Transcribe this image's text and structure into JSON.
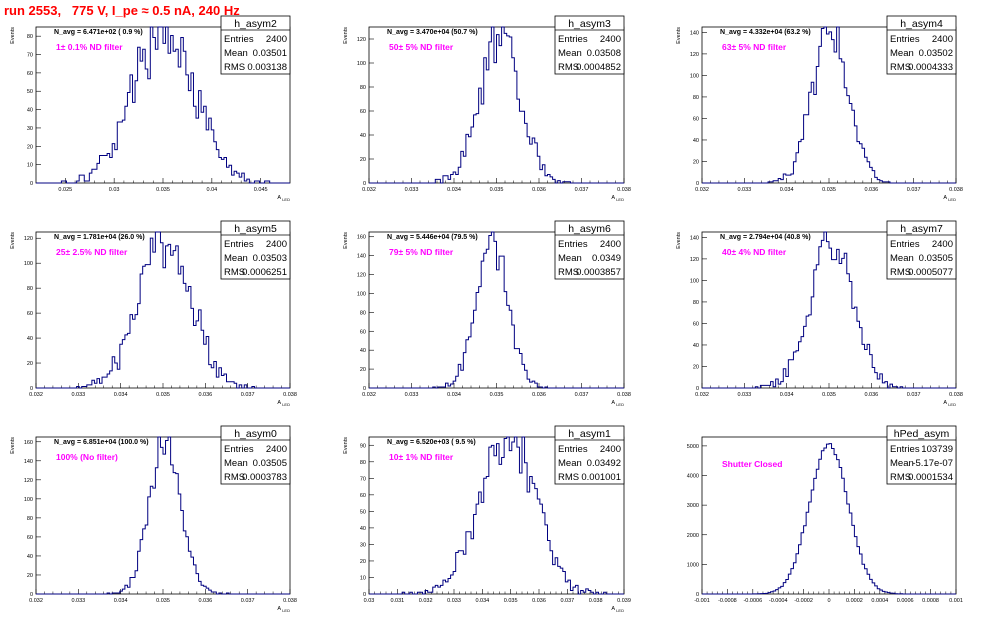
{
  "page": {
    "title": "run 2553,   775 V, I_pe ≈ 0.5 nA, 240 Hz",
    "title_color": "#ff0000",
    "annotation_color": "#ff00ff",
    "line_color": "#000080"
  },
  "chart_data": [
    {
      "type": "histogram",
      "name": "h_asym2",
      "nav_label": "N_avg = 6.471e+02 ( 0.9 %)",
      "filter_label": "1± 0.1% ND filter",
      "stats": {
        "Entries": "2400",
        "Mean": "0.03501",
        "RMS": "0.003138"
      },
      "ylabel": "Events",
      "xlabel": "A_LED",
      "xlim": [
        0.022,
        0.048
      ],
      "ylim": [
        0,
        85
      ],
      "xticks": [
        "0.025",
        "0.03",
        "0.035",
        "0.04",
        "0.045"
      ],
      "xtick_values": [
        0.025,
        0.03,
        0.035,
        0.04,
        0.045
      ],
      "yticks": [
        "0",
        "10",
        "20",
        "30",
        "40",
        "50",
        "60",
        "70",
        "80"
      ],
      "ytick_values": [
        0,
        10,
        20,
        30,
        40,
        50,
        60,
        70,
        80
      ],
      "mean": 0.03501,
      "rms": 0.003138,
      "entries": 2400,
      "peak": 85,
      "bins": 100
    },
    {
      "type": "histogram",
      "name": "h_asym3",
      "nav_label": "N_avg = 3.470e+04 (50.7 %)",
      "filter_label": "50± 5% ND filter",
      "stats": {
        "Entries": "2400",
        "Mean": "0.03508",
        "RMS": "0.0004852"
      },
      "ylabel": "Events",
      "xlabel": "A_LED",
      "xlim": [
        0.032,
        0.038
      ],
      "ylim": [
        0,
        130
      ],
      "xticks": [
        "0.032",
        "0.033",
        "0.034",
        "0.035",
        "0.036",
        "0.037",
        "0.038"
      ],
      "xtick_values": [
        0.032,
        0.033,
        0.034,
        0.035,
        0.036,
        0.037,
        0.038
      ],
      "yticks": [
        "0",
        "20",
        "40",
        "60",
        "80",
        "100",
        "120"
      ],
      "ytick_values": [
        0,
        20,
        40,
        60,
        80,
        100,
        120
      ],
      "mean": 0.03508,
      "rms": 0.0004852,
      "entries": 2400,
      "peak": 120,
      "bins": 100
    },
    {
      "type": "histogram",
      "name": "h_asym4",
      "nav_label": "N_avg = 4.332e+04 (63.2 %)",
      "filter_label": "63± 5% ND filter",
      "stats": {
        "Entries": "2400",
        "Mean": "0.03502",
        "RMS": "0.0004333"
      },
      "ylabel": "Events",
      "xlabel": "A_LED",
      "xlim": [
        0.032,
        0.038
      ],
      "ylim": [
        0,
        145
      ],
      "xticks": [
        "0.032",
        "0.033",
        "0.034",
        "0.035",
        "0.036",
        "0.037",
        "0.038"
      ],
      "xtick_values": [
        0.032,
        0.033,
        0.034,
        0.035,
        0.036,
        0.037,
        0.038
      ],
      "yticks": [
        "0",
        "20",
        "40",
        "60",
        "80",
        "100",
        "120",
        "140"
      ],
      "ytick_values": [
        0,
        20,
        40,
        60,
        80,
        100,
        120,
        140
      ],
      "mean": 0.03502,
      "rms": 0.0004333,
      "entries": 2400,
      "peak": 138,
      "bins": 100
    },
    {
      "type": "histogram",
      "name": "h_asym5",
      "nav_label": "N_avg = 1.781e+04 (26.0 %)",
      "filter_label": "25± 2.5% ND filter",
      "stats": {
        "Entries": "2400",
        "Mean": "0.03503",
        "RMS": "0.0006251"
      },
      "ylabel": "Events",
      "xlabel": "A_LED",
      "xlim": [
        0.032,
        0.038
      ],
      "ylim": [
        0,
        125
      ],
      "xticks": [
        "0.032",
        "0.033",
        "0.034",
        "0.035",
        "0.036",
        "0.037",
        "0.038"
      ],
      "xtick_values": [
        0.032,
        0.033,
        0.034,
        0.035,
        0.036,
        0.037,
        0.038
      ],
      "yticks": [
        "0",
        "20",
        "40",
        "60",
        "80",
        "100",
        "120"
      ],
      "ytick_values": [
        0,
        20,
        40,
        60,
        80,
        100,
        120
      ],
      "mean": 0.03503,
      "rms": 0.0006251,
      "entries": 2400,
      "peak": 115,
      "bins": 100
    },
    {
      "type": "histogram",
      "name": "h_asym6",
      "nav_label": "N_avg = 5.446e+04 (79.5 %)",
      "filter_label": "79± 5% ND filter",
      "stats": {
        "Entries": "2400",
        "Mean": "0.0349",
        "RMS": "0.0003857"
      },
      "ylabel": "Events",
      "xlabel": "A_LED",
      "xlim": [
        0.032,
        0.038
      ],
      "ylim": [
        0,
        165
      ],
      "xticks": [
        "0.032",
        "0.033",
        "0.034",
        "0.035",
        "0.036",
        "0.037",
        "0.038"
      ],
      "xtick_values": [
        0.032,
        0.033,
        0.034,
        0.035,
        0.036,
        0.037,
        0.038
      ],
      "yticks": [
        "0",
        "20",
        "40",
        "60",
        "80",
        "100",
        "120",
        "140",
        "160"
      ],
      "ytick_values": [
        0,
        20,
        40,
        60,
        80,
        100,
        120,
        140,
        160
      ],
      "mean": 0.0349,
      "rms": 0.0003857,
      "entries": 2400,
      "peak": 155,
      "bins": 100
    },
    {
      "type": "histogram",
      "name": "h_asym7",
      "nav_label": "N_avg = 2.794e+04 (40.8 %)",
      "filter_label": "40± 4% ND filter",
      "stats": {
        "Entries": "2400",
        "Mean": "0.03505",
        "RMS": "0.0005077"
      },
      "ylabel": "Events",
      "xlabel": "A_LED",
      "xlim": [
        0.032,
        0.038
      ],
      "ylim": [
        0,
        145
      ],
      "xticks": [
        "0.032",
        "0.033",
        "0.034",
        "0.035",
        "0.036",
        "0.037",
        "0.038"
      ],
      "xtick_values": [
        0.032,
        0.033,
        0.034,
        0.035,
        0.036,
        0.037,
        0.038
      ],
      "yticks": [
        "0",
        "20",
        "40",
        "60",
        "80",
        "100",
        "120",
        "140"
      ],
      "ytick_values": [
        0,
        20,
        40,
        60,
        80,
        100,
        120,
        140
      ],
      "mean": 0.03505,
      "rms": 0.0005077,
      "entries": 2400,
      "peak": 135,
      "bins": 100
    },
    {
      "type": "histogram",
      "name": "h_asym0",
      "nav_label": "N_avg = 6.851e+04 (100.0 %)",
      "filter_label": "100% (No filter)",
      "stats": {
        "Entries": "2400",
        "Mean": "0.03505",
        "RMS": "0.0003783"
      },
      "ylabel": "Events",
      "xlabel": "A_LED",
      "xlim": [
        0.032,
        0.038
      ],
      "ylim": [
        0,
        165
      ],
      "xticks": [
        "0.032",
        "0.033",
        "0.034",
        "0.035",
        "0.036",
        "0.037",
        "0.038"
      ],
      "xtick_values": [
        0.032,
        0.033,
        0.034,
        0.035,
        0.036,
        0.037,
        0.038
      ],
      "yticks": [
        "0",
        "20",
        "40",
        "60",
        "80",
        "100",
        "120",
        "140",
        "160"
      ],
      "ytick_values": [
        0,
        20,
        40,
        60,
        80,
        100,
        120,
        140,
        160
      ],
      "mean": 0.03505,
      "rms": 0.0003783,
      "entries": 2400,
      "peak": 155,
      "bins": 100
    },
    {
      "type": "histogram",
      "name": "h_asym1",
      "nav_label": "N_avg = 6.520e+03 ( 9.5 %)",
      "filter_label": "10± 1% ND filter",
      "stats": {
        "Entries": "2400",
        "Mean": "0.03492",
        "RMS": "0.001001"
      },
      "ylabel": "Events",
      "xlabel": "A_LED",
      "xlim": [
        0.03,
        0.039
      ],
      "ylim": [
        0,
        95
      ],
      "xticks": [
        "0.03",
        "0.031",
        "0.032",
        "0.033",
        "0.034",
        "0.035",
        "0.036",
        "0.037",
        "0.038",
        "0.039"
      ],
      "xtick_values": [
        0.03,
        0.031,
        0.032,
        0.033,
        0.034,
        0.035,
        0.036,
        0.037,
        0.038,
        0.039
      ],
      "yticks": [
        "0",
        "10",
        "20",
        "30",
        "40",
        "50",
        "60",
        "70",
        "80",
        "90"
      ],
      "ytick_values": [
        0,
        10,
        20,
        30,
        40,
        50,
        60,
        70,
        80,
        90
      ],
      "mean": 0.03492,
      "rms": 0.001001,
      "entries": 2400,
      "peak": 90,
      "bins": 100
    },
    {
      "type": "histogram",
      "name": "hPed_asym",
      "nav_label": "",
      "filter_label": "Shutter Closed",
      "stats": {
        "Entries": "103739",
        "Mean": "-5.17e-07",
        "RMS": "0.0001534"
      },
      "ylabel": "",
      "xlabel": "",
      "xlim": [
        -0.001,
        0.001
      ],
      "ylim": [
        0,
        5300
      ],
      "xticks": [
        "-0.001",
        "-0.0008",
        "-0.0006",
        "-0.0004",
        "-0.0002",
        "0",
        "0.0002",
        "0.0004",
        "0.0006",
        "0.0008",
        "0.001"
      ],
      "xtick_values": [
        -0.001,
        -0.0008,
        -0.0006,
        -0.0004,
        -0.0002,
        0,
        0.0002,
        0.0004,
        0.0006,
        0.0008,
        0.001
      ],
      "yticks": [
        "0",
        "1000",
        "2000",
        "3000",
        "4000",
        "5000"
      ],
      "ytick_values": [
        0,
        1000,
        2000,
        3000,
        4000,
        5000
      ],
      "mean": -5.17e-07,
      "rms": 0.0001534,
      "entries": 103739,
      "peak": 5050,
      "bins": 100
    }
  ]
}
